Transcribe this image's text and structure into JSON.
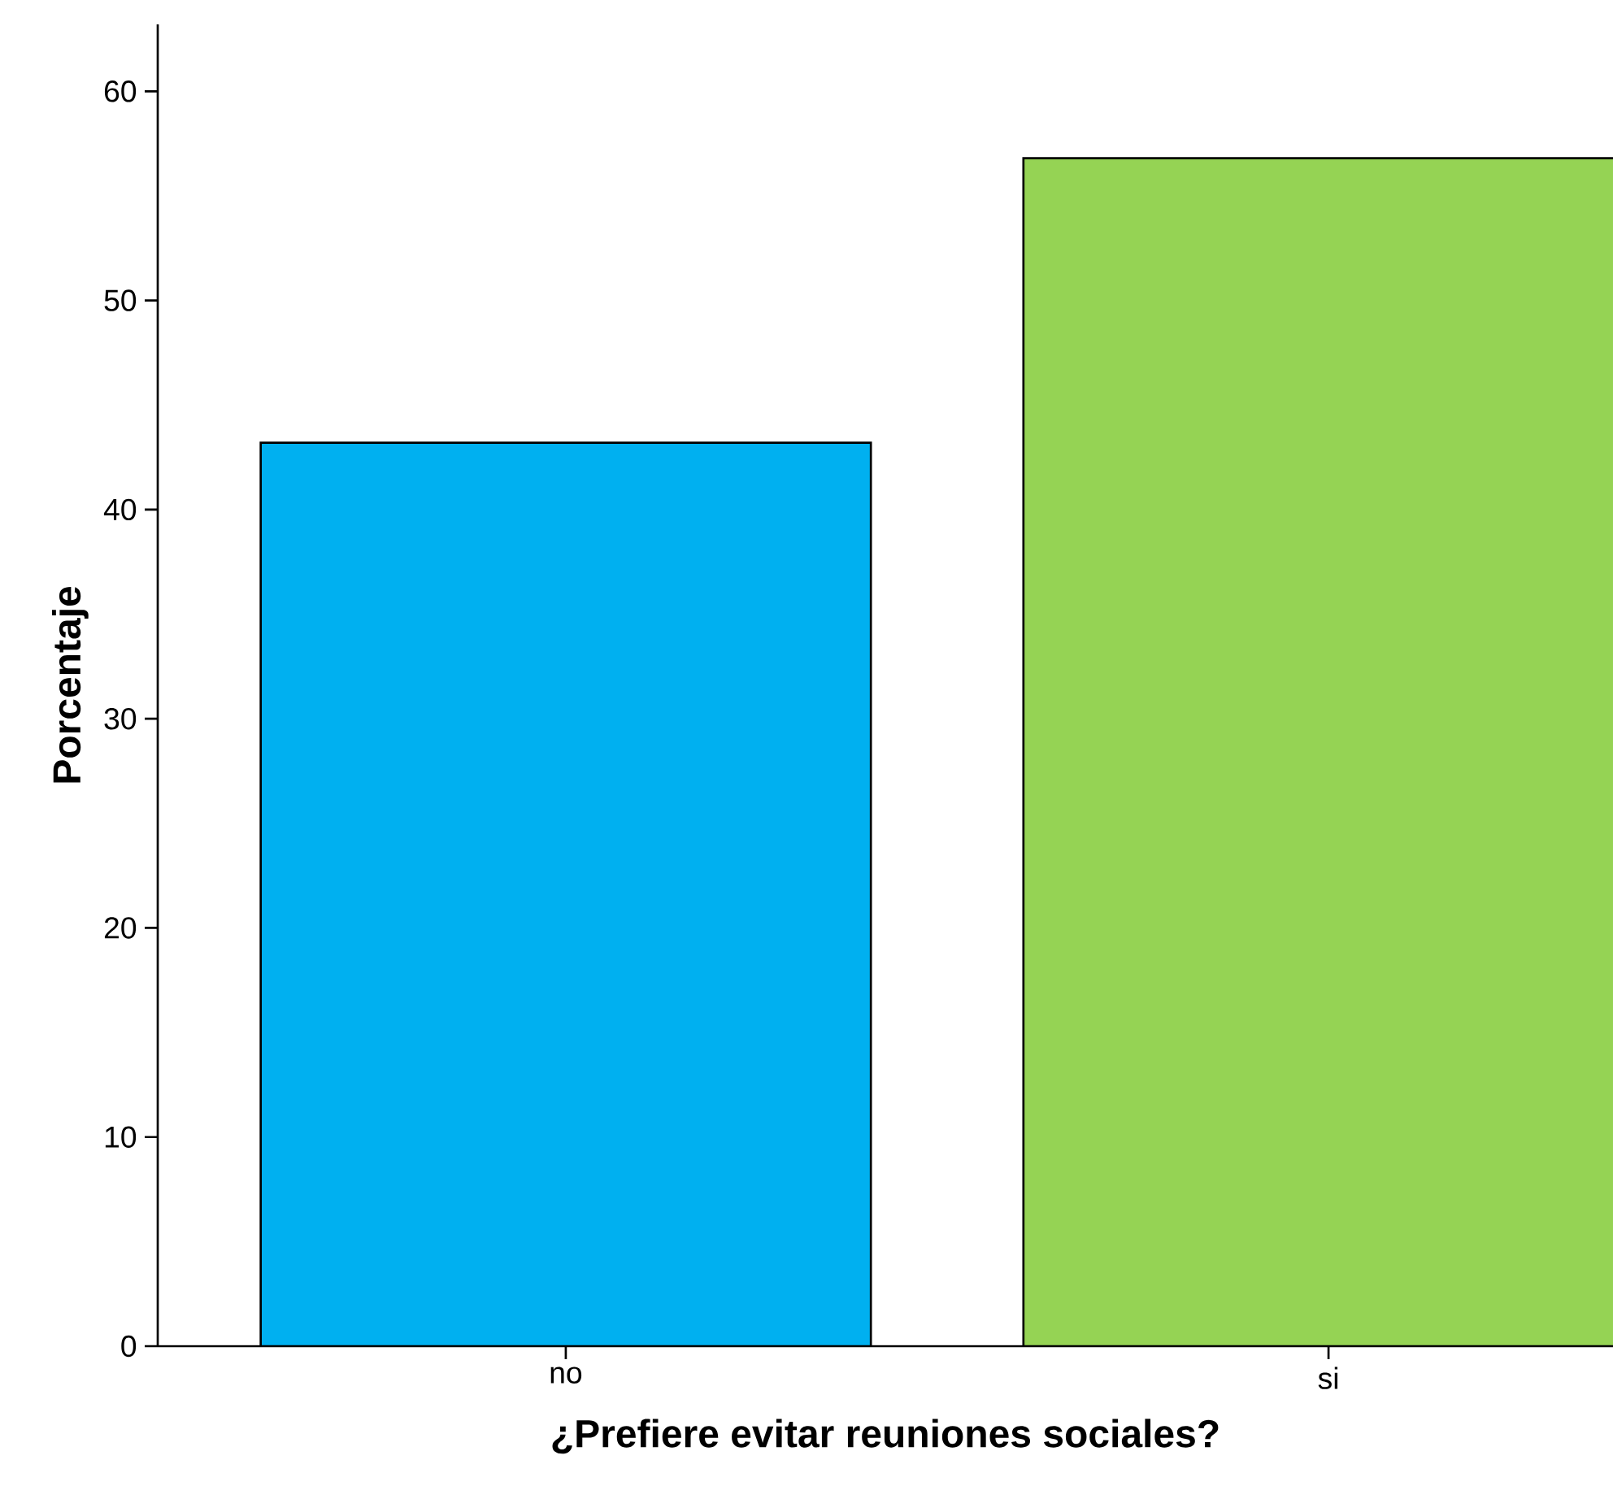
{
  "chart_data": {
    "type": "bar",
    "xlabel": "¿Prefiere evitar reuniones sociales?",
    "ylabel": "Porcentaje",
    "categories": [
      "no",
      "si"
    ],
    "values": [
      43.2,
      56.8
    ],
    "colors": [
      "#00b0f0",
      "#95d354"
    ],
    "ylim": [
      0,
      63.2
    ],
    "yticks": [
      0,
      10,
      20,
      30,
      40,
      50,
      60
    ]
  }
}
